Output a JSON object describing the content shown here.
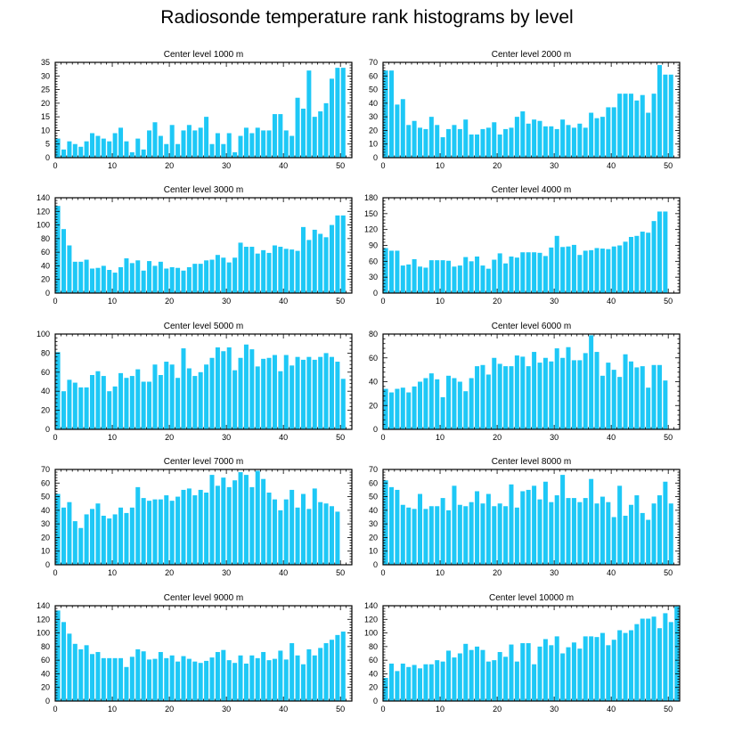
{
  "title": "Radiosonde temperature rank histograms by level",
  "colors": {
    "bar": "#1EC8F6",
    "axis": "#000000"
  },
  "chart_data": [
    {
      "type": "bar",
      "title": "Center level 1000 m",
      "xlim": [
        0,
        52
      ],
      "ylim": [
        0,
        35
      ],
      "xticks": [
        0,
        10,
        20,
        30,
        40,
        50
      ],
      "yticks": [
        0,
        5,
        10,
        15,
        20,
        25,
        30,
        35
      ],
      "values": [
        7,
        3,
        6,
        5,
        4,
        6,
        9,
        8,
        7,
        6,
        9,
        11,
        6,
        2,
        7,
        3,
        10,
        13,
        8,
        5,
        12,
        5,
        10,
        12,
        10,
        11,
        15,
        5,
        9,
        5,
        9,
        2,
        8,
        11,
        9,
        11,
        10,
        10,
        16,
        16,
        10,
        8,
        22,
        18,
        32,
        15,
        17,
        20,
        29,
        33,
        33,
        0
      ]
    },
    {
      "type": "bar",
      "title": "Center level 2000 m",
      "xlim": [
        0,
        52
      ],
      "ylim": [
        0,
        70
      ],
      "xticks": [
        0,
        10,
        20,
        30,
        40,
        50
      ],
      "yticks": [
        0,
        10,
        20,
        30,
        40,
        50,
        60,
        70
      ],
      "values": [
        64,
        64,
        39,
        43,
        24,
        27,
        22,
        21,
        30,
        24,
        15,
        21,
        24,
        21,
        28,
        17,
        17,
        21,
        22,
        26,
        17,
        21,
        22,
        30,
        34,
        25,
        28,
        27,
        23,
        23,
        21,
        28,
        24,
        22,
        25,
        22,
        33,
        29,
        30,
        37,
        37,
        47,
        47,
        47,
        42,
        46,
        33,
        47,
        68,
        61,
        61,
        0
      ]
    },
    {
      "type": "bar",
      "title": "Center level 3000 m",
      "xlim": [
        0,
        52
      ],
      "ylim": [
        0,
        140
      ],
      "xticks": [
        0,
        10,
        20,
        30,
        40,
        50
      ],
      "yticks": [
        0,
        20,
        40,
        60,
        80,
        100,
        120,
        140
      ],
      "values": [
        128,
        94,
        70,
        46,
        46,
        49,
        36,
        37,
        40,
        34,
        30,
        38,
        51,
        44,
        48,
        33,
        47,
        40,
        46,
        36,
        38,
        37,
        33,
        38,
        43,
        43,
        48,
        49,
        56,
        52,
        45,
        52,
        74,
        68,
        68,
        58,
        63,
        59,
        70,
        68,
        65,
        64,
        62,
        97,
        78,
        93,
        87,
        82,
        100,
        114,
        114,
        0
      ]
    },
    {
      "type": "bar",
      "title": "Center level 4000 m",
      "xlim": [
        0,
        52
      ],
      "ylim": [
        0,
        180
      ],
      "xticks": [
        0,
        10,
        20,
        30,
        40,
        50
      ],
      "yticks": [
        0,
        30,
        60,
        90,
        120,
        150,
        180
      ],
      "values": [
        85,
        80,
        80,
        52,
        54,
        64,
        50,
        48,
        62,
        62,
        62,
        61,
        50,
        52,
        68,
        60,
        69,
        52,
        46,
        63,
        75,
        56,
        69,
        67,
        77,
        77,
        77,
        76,
        70,
        86,
        108,
        87,
        88,
        91,
        72,
        80,
        81,
        85,
        84,
        83,
        88,
        90,
        97,
        106,
        108,
        116,
        114,
        136,
        154,
        154,
        0,
        0
      ]
    },
    {
      "type": "bar",
      "title": "Center level 5000 m",
      "xlim": [
        0,
        52
      ],
      "ylim": [
        0,
        100
      ],
      "xticks": [
        0,
        10,
        20,
        30,
        40,
        50
      ],
      "yticks": [
        0,
        20,
        40,
        60,
        80,
        100
      ],
      "values": [
        81,
        40,
        52,
        49,
        44,
        44,
        57,
        61,
        56,
        40,
        45,
        59,
        54,
        56,
        63,
        50,
        50,
        68,
        57,
        71,
        68,
        54,
        85,
        64,
        56,
        60,
        68,
        75,
        86,
        82,
        86,
        62,
        75,
        89,
        84,
        66,
        74,
        75,
        78,
        61,
        78,
        67,
        76,
        73,
        76,
        73,
        76,
        80,
        76,
        71,
        53,
        0
      ]
    },
    {
      "type": "bar",
      "title": "Center level 6000 m",
      "xlim": [
        0,
        52
      ],
      "ylim": [
        0,
        80
      ],
      "xticks": [
        0,
        10,
        20,
        30,
        40,
        50
      ],
      "yticks": [
        0,
        20,
        40,
        60,
        80
      ],
      "values": [
        34,
        31,
        34,
        35,
        31,
        36,
        40,
        43,
        47,
        42,
        27,
        45,
        43,
        40,
        32,
        43,
        53,
        54,
        46,
        60,
        55,
        53,
        53,
        62,
        61,
        53,
        65,
        56,
        60,
        57,
        68,
        60,
        69,
        58,
        58,
        64,
        79,
        65,
        45,
        56,
        50,
        44,
        63,
        57,
        52,
        53,
        35,
        54,
        54,
        41,
        0,
        0
      ]
    },
    {
      "type": "bar",
      "title": "Center level 7000 m",
      "xlim": [
        0,
        52
      ],
      "ylim": [
        0,
        70
      ],
      "xticks": [
        0,
        10,
        20,
        30,
        40,
        50
      ],
      "yticks": [
        0,
        10,
        20,
        30,
        40,
        50,
        60,
        70
      ],
      "values": [
        52,
        42,
        46,
        32,
        27,
        37,
        41,
        45,
        36,
        34,
        37,
        42,
        38,
        42,
        57,
        49,
        47,
        48,
        48,
        51,
        47,
        50,
        55,
        56,
        51,
        55,
        53,
        66,
        58,
        64,
        57,
        62,
        68,
        66,
        57,
        69,
        63,
        53,
        48,
        40,
        48,
        55,
        42,
        52,
        41,
        56,
        46,
        45,
        43,
        39,
        0,
        0
      ]
    },
    {
      "type": "bar",
      "title": "Center level 8000 m",
      "xlim": [
        0,
        52
      ],
      "ylim": [
        0,
        70
      ],
      "xticks": [
        0,
        10,
        20,
        30,
        40,
        50
      ],
      "yticks": [
        0,
        10,
        20,
        30,
        40,
        50,
        60,
        70
      ],
      "values": [
        62,
        57,
        55,
        44,
        42,
        41,
        52,
        41,
        43,
        43,
        49,
        40,
        58,
        44,
        43,
        46,
        54,
        45,
        52,
        43,
        45,
        43,
        59,
        42,
        54,
        55,
        58,
        48,
        61,
        46,
        51,
        66,
        49,
        49,
        46,
        49,
        63,
        45,
        50,
        46,
        35,
        58,
        36,
        44,
        51,
        38,
        33,
        45,
        51,
        61,
        45,
        0
      ]
    },
    {
      "type": "bar",
      "title": "Center level 9000 m",
      "xlim": [
        0,
        52
      ],
      "ylim": [
        0,
        140
      ],
      "xticks": [
        0,
        10,
        20,
        30,
        40,
        50
      ],
      "yticks": [
        0,
        20,
        40,
        60,
        80,
        100,
        120,
        140
      ],
      "values": [
        133,
        116,
        99,
        84,
        76,
        82,
        69,
        72,
        63,
        63,
        63,
        63,
        50,
        65,
        76,
        73,
        61,
        62,
        72,
        63,
        67,
        58,
        66,
        62,
        58,
        56,
        59,
        64,
        72,
        75,
        60,
        56,
        67,
        55,
        67,
        63,
        72,
        60,
        62,
        74,
        61,
        85,
        67,
        54,
        76,
        67,
        78,
        85,
        90,
        97,
        102,
        0
      ]
    },
    {
      "type": "bar",
      "title": "Center level 10000 m",
      "xlim": [
        0,
        52
      ],
      "ylim": [
        0,
        140
      ],
      "xticks": [
        0,
        10,
        20,
        30,
        40,
        50
      ],
      "yticks": [
        0,
        20,
        40,
        60,
        80,
        100,
        120,
        140
      ],
      "values": [
        34,
        55,
        44,
        55,
        50,
        53,
        48,
        54,
        54,
        60,
        58,
        74,
        64,
        70,
        84,
        75,
        80,
        75,
        58,
        60,
        72,
        65,
        83,
        58,
        85,
        85,
        54,
        80,
        91,
        82,
        95,
        70,
        79,
        86,
        77,
        95,
        95,
        94,
        100,
        82,
        90,
        104,
        100,
        104,
        113,
        121,
        121,
        124,
        107,
        129,
        116,
        139
      ]
    }
  ]
}
